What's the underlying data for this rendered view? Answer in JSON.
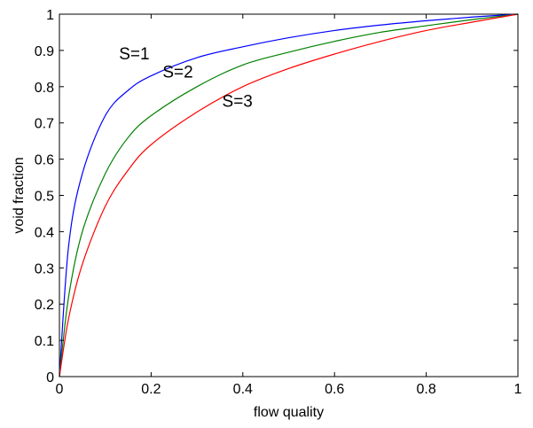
{
  "chart_data": {
    "type": "line",
    "title": "",
    "xlabel": "flow quality",
    "ylabel": "void fraction",
    "xlim": [
      0,
      1
    ],
    "ylim": [
      0,
      1
    ],
    "grid": false,
    "legend": "none",
    "x_ticks": [
      "0",
      "0.2",
      "0.4",
      "0.6",
      "0.8",
      "1"
    ],
    "y_ticks": [
      "0",
      "0.1",
      "0.2",
      "0.3",
      "0.4",
      "0.5",
      "0.6",
      "0.7",
      "0.8",
      "0.9",
      "1"
    ],
    "x": [
      0,
      0.02,
      0.05,
      0.1,
      0.15,
      0.2,
      0.3,
      0.4,
      0.5,
      0.6,
      0.7,
      0.8,
      0.9,
      1.0
    ],
    "series": [
      {
        "color": "#0000ff",
        "values": [
          0,
          0.36,
          0.56,
          0.72,
          0.79,
          0.83,
          0.88,
          0.91,
          0.935,
          0.955,
          0.97,
          0.982,
          0.992,
          1.0
        ]
      },
      {
        "color": "#008000",
        "values": [
          0,
          0.22,
          0.4,
          0.56,
          0.66,
          0.72,
          0.8,
          0.86,
          0.895,
          0.925,
          0.95,
          0.968,
          0.985,
          1.0
        ]
      },
      {
        "color": "#ff0000",
        "values": [
          0,
          0.16,
          0.31,
          0.47,
          0.57,
          0.64,
          0.73,
          0.8,
          0.85,
          0.89,
          0.925,
          0.955,
          0.978,
          1.0
        ]
      }
    ],
    "annotations": [
      {
        "text": "S=1",
        "x": 0.13,
        "y": 0.875
      },
      {
        "text": "S=2",
        "x": 0.225,
        "y": 0.825
      },
      {
        "text": "S=3",
        "x": 0.355,
        "y": 0.745
      }
    ]
  }
}
